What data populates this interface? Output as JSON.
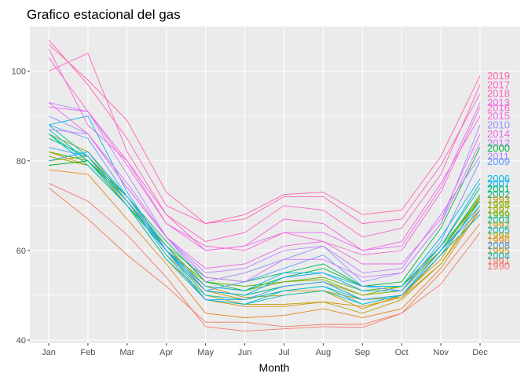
{
  "chart_data": {
    "type": "line",
    "title": "Grafico estacional del gas",
    "xlabel": "Month",
    "ylabel": "",
    "categories": [
      "Jan",
      "Feb",
      "Mar",
      "Apr",
      "May",
      "Jun",
      "Jul",
      "Aug",
      "Sep",
      "Oct",
      "Nov",
      "Dec"
    ],
    "ylim": [
      39.3,
      110.1
    ],
    "yticks": [
      "40",
      "60",
      "80",
      "100"
    ],
    "grid": true,
    "legend": "none (series labels at right end)",
    "colors": {
      "panel": "#ebebeb",
      "gridline": "#ffffff"
    },
    "series": [
      {
        "name": "1990",
        "color": "#F8766D",
        "values": [
          75,
          71,
          63.5,
          54,
          43,
          42,
          42.5,
          43,
          42.8,
          46,
          52.5,
          64
        ]
      },
      {
        "name": "1991",
        "color": "#F37B59",
        "values": [
          74,
          67,
          59,
          52,
          44,
          44,
          43,
          43.5,
          43.5,
          46,
          55,
          66
        ]
      },
      {
        "name": "1992",
        "color": "#C49A00",
        "values": [
          80,
          81,
          70,
          60,
          52,
          49.5,
          50,
          51,
          49,
          49.5,
          57,
          70
        ]
      },
      {
        "name": "1993",
        "color": "#CA9700",
        "values": [
          82,
          80,
          71,
          59,
          51,
          49,
          51,
          51,
          47,
          50,
          58,
          72
        ]
      },
      {
        "name": "1994",
        "color": "#BA9E00",
        "values": [
          79,
          80,
          70,
          58,
          50,
          48,
          48,
          48.5,
          46,
          49,
          57,
          69
        ]
      },
      {
        "name": "1995",
        "color": "#D89000",
        "values": [
          82,
          79,
          70,
          58,
          49,
          47.5,
          47.5,
          48.5,
          47.5,
          49.5,
          59,
          68
        ]
      },
      {
        "name": "1996",
        "color": "#E7861B",
        "values": [
          78,
          77,
          67,
          57,
          46,
          45,
          45.5,
          47,
          45,
          47,
          56,
          69
        ]
      },
      {
        "name": "1997",
        "color": "#9CA700",
        "values": [
          86,
          82,
          71,
          61,
          51,
          50,
          52,
          53,
          50,
          52,
          60,
          71.5
        ]
      },
      {
        "name": "1998",
        "color": "#7CAE00",
        "values": [
          81,
          79,
          70,
          61,
          52,
          51,
          53,
          53.5,
          50,
          51,
          60,
          72
        ]
      },
      {
        "name": "1999",
        "color": "#53B400",
        "values": [
          82,
          80,
          71,
          60,
          53,
          52,
          53,
          54,
          51,
          52,
          61,
          71
        ]
      },
      {
        "name": "2000",
        "color": "#00BA38",
        "values": [
          79,
          80,
          72,
          62,
          53,
          51,
          54,
          56,
          52,
          53,
          65,
          83
        ]
      },
      {
        "name": "2001",
        "color": "#00BD5C",
        "values": [
          85,
          81,
          72,
          61,
          54,
          53,
          55,
          57,
          52,
          52,
          61,
          74
        ]
      },
      {
        "name": "2002",
        "color": "#00C08B",
        "values": [
          86,
          80,
          70,
          60,
          51,
          50,
          52,
          53,
          49,
          50,
          60,
          72.5
        ]
      },
      {
        "name": "2003",
        "color": "#00C1AA",
        "values": [
          88,
          81,
          71,
          60,
          50,
          49,
          51,
          52,
          49,
          50,
          59,
          71
        ]
      },
      {
        "name": "2004",
        "color": "#00BFC4",
        "values": [
          87,
          80,
          71,
          59,
          49,
          48,
          50,
          51,
          48,
          50,
          59,
          68
        ]
      },
      {
        "name": "2005",
        "color": "#00BCD8",
        "values": [
          86,
          79,
          70,
          58,
          49,
          48,
          51,
          52,
          48,
          50,
          60,
          70
        ]
      },
      {
        "name": "2006",
        "color": "#00B8E7",
        "values": [
          88,
          90,
          73,
          60,
          52,
          51,
          55,
          55,
          52,
          52,
          63,
          76
        ]
      },
      {
        "name": "2007",
        "color": "#00B0F6",
        "values": [
          80,
          82,
          72,
          60,
          51,
          50,
          54,
          55,
          51,
          51,
          61,
          75
        ]
      },
      {
        "name": "2008",
        "color": "#35A2FF",
        "values": [
          83,
          81,
          71,
          60,
          49,
          49,
          52,
          53,
          49,
          50,
          60,
          69
        ]
      },
      {
        "name": "2009",
        "color": "#619CFF",
        "values": [
          88,
          85,
          72,
          61,
          51,
          53,
          56,
          59,
          52,
          51,
          62,
          80
        ]
      },
      {
        "name": "2010",
        "color": "#9590FF",
        "values": [
          90,
          86,
          74,
          63,
          53,
          55,
          58,
          61,
          53,
          55,
          66,
          88
        ]
      },
      {
        "name": "2011",
        "color": "#B983FF",
        "values": [
          93,
          91,
          77,
          63,
          55,
          56,
          60,
          61,
          55,
          56,
          68,
          81
        ]
      },
      {
        "name": "2012",
        "color": "#D376FF",
        "values": [
          87,
          86,
          75,
          63,
          54,
          53,
          58,
          58,
          54,
          55,
          66,
          84
        ]
      },
      {
        "name": "2013",
        "color": "#E76BF3",
        "values": [
          92,
          91,
          80,
          66,
          60,
          61,
          64,
          64,
          60,
          61,
          74,
          93
        ]
      },
      {
        "name": "2014",
        "color": "#EE67E8",
        "values": [
          93,
          86,
          74,
          63,
          56,
          57,
          61,
          62,
          57,
          57,
          67,
          86
        ]
      },
      {
        "name": "2015",
        "color": "#F763E0",
        "values": [
          105,
          88,
          80,
          68,
          60,
          61,
          67,
          66,
          60,
          62,
          75,
          90
        ]
      },
      {
        "name": "2016",
        "color": "#FA62D5",
        "values": [
          103,
          91,
          79,
          66,
          61,
          60,
          64,
          62,
          59,
          60,
          73,
          92
        ]
      },
      {
        "name": "2017",
        "color": "#FF61C3",
        "values": [
          100,
          104,
          82,
          68,
          62,
          64,
          70,
          69,
          63,
          65,
          77,
          97
        ]
      },
      {
        "name": "2018",
        "color": "#FF62BC",
        "values": [
          107,
          97,
          85,
          70,
          66,
          67,
          72,
          72,
          66,
          67,
          79,
          95
        ]
      },
      {
        "name": "2019",
        "color": "#FF65AC",
        "values": [
          106,
          98,
          89,
          73,
          66,
          68,
          72.5,
          73,
          68,
          69,
          81,
          99
        ]
      }
    ]
  }
}
